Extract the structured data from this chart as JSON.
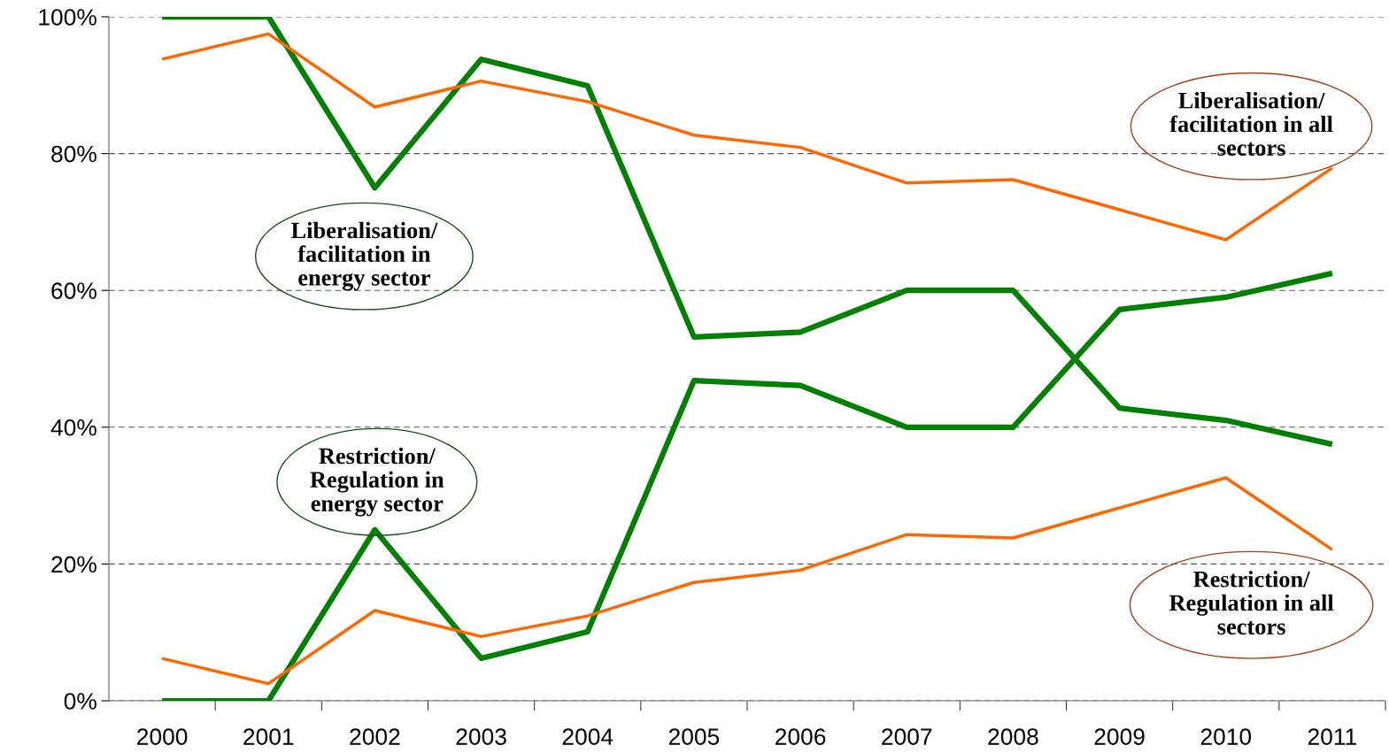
{
  "chart_data": {
    "type": "line",
    "categories": [
      "2000",
      "2001",
      "2002",
      "2003",
      "2004",
      "2005",
      "2006",
      "2007",
      "2008",
      "2009",
      "2010",
      "2011"
    ],
    "series": [
      {
        "name": "Liberalisation/\nfacilitation in\nenergy sector",
        "color": "#008000",
        "values": [
          100,
          100,
          75,
          93.8,
          89.9,
          53.2,
          53.9,
          60,
          60,
          42.8,
          41,
          37.5
        ]
      },
      {
        "name": "Restriction/\nRegulation in\nenergy sector",
        "color": "#008000",
        "values": [
          0,
          0,
          25,
          6.2,
          10.1,
          46.8,
          46.1,
          40,
          40,
          57.2,
          59,
          62.5
        ]
      },
      {
        "name": "Liberalisation/\nfacilitation in all\nsectors",
        "color": "#ff6600",
        "values": [
          93.8,
          97.5,
          86.8,
          90.6,
          87.6,
          82.7,
          80.9,
          75.7,
          76.2,
          71.8,
          67.4,
          77.9
        ]
      },
      {
        "name": "Restriction/\nRegulation in all\nsectors",
        "color": "#ff6600",
        "values": [
          6.2,
          2.5,
          13.2,
          9.4,
          12.4,
          17.3,
          19.1,
          24.3,
          23.8,
          28.2,
          32.6,
          22.1
        ]
      }
    ],
    "ylim": [
      0,
      100
    ],
    "yticks": [
      {
        "value": 0,
        "label": "0%"
      },
      {
        "value": 20,
        "label": "20%"
      },
      {
        "value": 40,
        "label": "40%"
      },
      {
        "value": 60,
        "label": "60%"
      },
      {
        "value": 80,
        "label": "80%"
      },
      {
        "value": 100,
        "label": "100%"
      }
    ],
    "grid": "y",
    "marker": "none",
    "line_style": "solid"
  }
}
